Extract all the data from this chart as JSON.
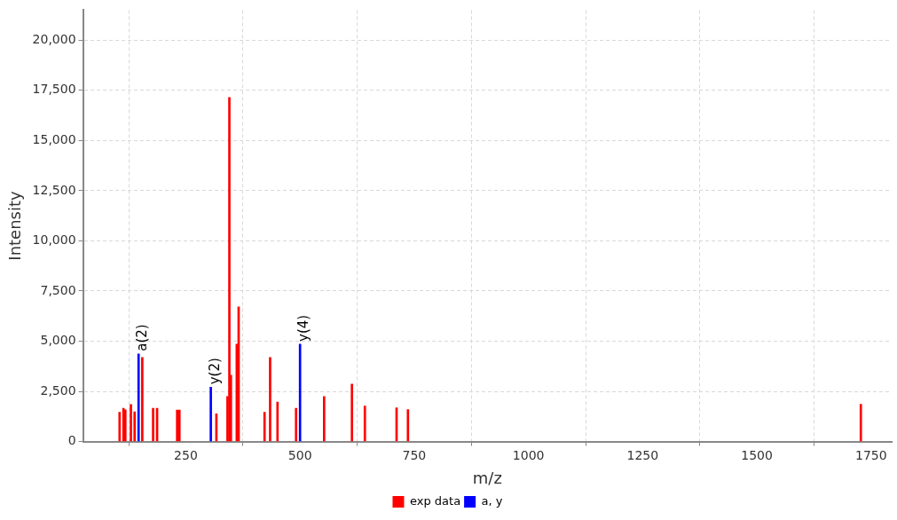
{
  "chart_data": {
    "type": "bar",
    "xlabel": "m/z",
    "ylabel": "Intensity",
    "xlim": [
      25,
      1795
    ],
    "ylim": [
      0,
      21500
    ],
    "xticks": [
      250,
      500,
      750,
      1000,
      1250,
      1500,
      1750
    ],
    "yticks": [
      0,
      {
        "value": 2500,
        "label": "2,500"
      },
      {
        "value": 5000,
        "label": "5,000"
      },
      {
        "value": 7500,
        "label": "7,500"
      },
      {
        "value": 10000,
        "label": "10,000"
      },
      {
        "value": 12500,
        "label": "12,500"
      },
      {
        "value": 15000,
        "label": "15,000"
      },
      {
        "value": 17500,
        "label": "17,500"
      },
      {
        "value": 20000,
        "label": "20,000"
      }
    ],
    "grid": true,
    "legend": "bottom",
    "series": [
      {
        "name": "exp data",
        "color": "#ff0000",
        "x": [
          105,
          113.5,
          117.6,
          129.8,
          137.9,
          154.7,
          178.4,
          187.1,
          231,
          236,
          316.9,
          341.2,
          345.3,
          348.7,
          361.5,
          365.6,
          422.3,
          434.5,
          450.7,
          491.3,
          552.7,
          613.6,
          641.9,
          711.3,
          736.2,
          1727.5
        ],
        "values": [
          1460,
          1660,
          1580,
          1850,
          1480,
          4190,
          1660,
          1660,
          1570,
          1570,
          1380,
          2240,
          17150,
          3310,
          4850,
          6710,
          1460,
          4190,
          1970,
          1660,
          2240,
          2860,
          1770,
          1680,
          1590,
          1860
        ]
      },
      {
        "name": "a, y",
        "color": "#0000ff",
        "x": [
          146.6,
          304.7,
          500
        ],
        "values": [
          4370,
          2710,
          4850
        ]
      }
    ],
    "annotations": [
      {
        "text": "a(2)",
        "x": 146.6,
        "y": 4370
      },
      {
        "text": "y(2)",
        "x": 304.7,
        "y": 2710
      },
      {
        "text": "y(4)",
        "x": 500,
        "y": 4850
      }
    ]
  }
}
